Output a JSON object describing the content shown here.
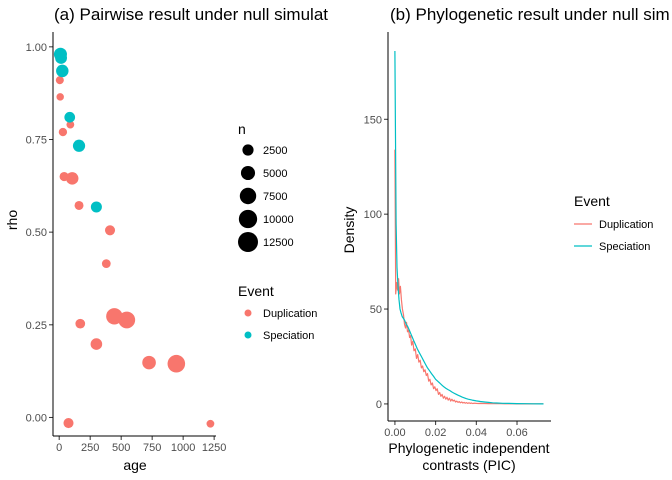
{
  "colors": {
    "duplication": "#F8766D",
    "speciation": "#00BFC4"
  },
  "chart_data": [
    {
      "type": "scatter",
      "title": "(a) Pairwise result under null simulat",
      "xlabel": "age",
      "ylabel": "rho",
      "xlim": [
        -50,
        1265
      ],
      "ylim": [
        -0.05,
        1.04
      ],
      "x_ticks": [
        0,
        250,
        500,
        750,
        1000,
        1250
      ],
      "x_tick_labels": [
        "0",
        "250",
        "500",
        "750",
        "1000",
        "1250"
      ],
      "y_ticks": [
        0,
        0.25,
        0.5,
        0.75,
        1.0
      ],
      "y_tick_labels": [
        "0.00",
        "0.25",
        "0.50",
        "0.75",
        "1.00"
      ],
      "grid": false,
      "size_legend": {
        "title": "n",
        "breaks": [
          2500,
          5000,
          7500,
          10000,
          12500
        ],
        "labels": [
          "2500",
          "5000",
          "7500",
          "10000",
          "12500"
        ]
      },
      "color_legend": {
        "title": "Event",
        "labels": [
          "Duplication",
          "Speciation"
        ]
      },
      "series": [
        {
          "name": "Duplication",
          "points": [
            {
              "x": 5,
              "y": 0.91,
              "n": 800
            },
            {
              "x": 8,
              "y": 0.865,
              "n": 600
            },
            {
              "x": 30,
              "y": 0.77,
              "n": 900
            },
            {
              "x": 90,
              "y": 0.79,
              "n": 700
            },
            {
              "x": 40,
              "y": 0.65,
              "n": 1300
            },
            {
              "x": 105,
              "y": 0.645,
              "n": 3500
            },
            {
              "x": 160,
              "y": 0.572,
              "n": 1200
            },
            {
              "x": 410,
              "y": 0.505,
              "n": 1800
            },
            {
              "x": 380,
              "y": 0.415,
              "n": 1100
            },
            {
              "x": 170,
              "y": 0.253,
              "n": 1600
            },
            {
              "x": 445,
              "y": 0.273,
              "n": 7500
            },
            {
              "x": 545,
              "y": 0.263,
              "n": 8000
            },
            {
              "x": 300,
              "y": 0.198,
              "n": 2800
            },
            {
              "x": 725,
              "y": 0.148,
              "n": 4500
            },
            {
              "x": 945,
              "y": 0.145,
              "n": 9000
            },
            {
              "x": 75,
              "y": -0.015,
              "n": 1800
            },
            {
              "x": 1220,
              "y": -0.017,
              "n": 700
            }
          ]
        },
        {
          "name": "Speciation",
          "points": [
            {
              "x": 10,
              "y": 0.98,
              "n": 4000
            },
            {
              "x": 15,
              "y": 0.97,
              "n": 3000
            },
            {
              "x": 25,
              "y": 0.935,
              "n": 3500
            },
            {
              "x": 85,
              "y": 0.81,
              "n": 2200
            },
            {
              "x": 160,
              "y": 0.733,
              "n": 3300
            },
            {
              "x": 300,
              "y": 0.568,
              "n": 2400
            }
          ]
        }
      ]
    },
    {
      "type": "line",
      "title": "(b) Phylogenetic result under null sim",
      "xlabel": "Phylogenetic independent\ncontrasts (PIC)",
      "ylabel": "Density",
      "xlim": [
        -0.0034,
        0.0767
      ],
      "ylim": [
        -9,
        196
      ],
      "x_ticks": [
        0,
        0.02,
        0.04,
        0.06
      ],
      "x_tick_labels": [
        "0.00",
        "0.02",
        "0.04",
        "0.06"
      ],
      "y_ticks": [
        0,
        50,
        100,
        150
      ],
      "y_tick_labels": [
        "0",
        "50",
        "100",
        "150"
      ],
      "grid": false,
      "color_legend": {
        "title": "Event",
        "labels": [
          "Duplication",
          "Speciation"
        ]
      },
      "series": [
        {
          "name": "Duplication",
          "x": [
            0.0,
            0.0004,
            0.0009,
            0.0013,
            0.0018,
            0.0022,
            0.0027,
            0.0032,
            0.0037,
            0.0042,
            0.0047,
            0.0052,
            0.0057,
            0.0062,
            0.0067,
            0.0072,
            0.0077,
            0.0082,
            0.0088,
            0.0094,
            0.01,
            0.0106,
            0.0112,
            0.0118,
            0.0124,
            0.013,
            0.0136,
            0.0142,
            0.0148,
            0.0154,
            0.016,
            0.0166,
            0.0172,
            0.0178,
            0.0184,
            0.019,
            0.0196,
            0.0202,
            0.0208,
            0.0214,
            0.022,
            0.0226,
            0.0232,
            0.0238,
            0.0244,
            0.025,
            0.0256,
            0.0262,
            0.0268,
            0.0274,
            0.028,
            0.0286,
            0.0292,
            0.0298,
            0.0304,
            0.031,
            0.0316,
            0.0322,
            0.0328,
            0.0334,
            0.034,
            0.0346,
            0.0352,
            0.0358,
            0.0364,
            0.037,
            0.0376,
            0.0382,
            0.039,
            0.04,
            0.041,
            0.042,
            0.043,
            0.044,
            0.046,
            0.048,
            0.05,
            0.052,
            0.054,
            0.056,
            0.058,
            0.06,
            0.062,
            0.064,
            0.066,
            0.068,
            0.07,
            0.072,
            0.073
          ],
          "y": [
            134,
            58,
            64,
            60,
            66,
            58,
            62,
            55,
            50,
            47,
            42,
            40,
            43,
            38,
            39,
            35,
            36,
            31,
            33,
            28,
            29,
            24,
            26,
            22,
            23,
            19,
            20,
            17,
            18,
            15,
            16,
            12,
            13,
            10,
            11,
            8,
            9,
            7,
            8,
            5,
            6,
            4,
            5,
            3,
            4,
            2.5,
            3.5,
            2,
            3,
            1.5,
            2.5,
            1.5,
            2,
            1,
            1.5,
            0.8,
            1.2,
            0.6,
            1.0,
            0.5,
            0.8,
            0.4,
            0.7,
            0.3,
            0.6,
            0.3,
            0.5,
            0.2,
            0.4,
            0.3,
            0.2,
            0.3,
            0.2,
            0.2,
            0.15,
            0.1,
            0.1,
            0.1,
            0.05,
            0.05,
            0.05,
            0.03,
            0.03,
            0.02,
            0.02,
            0.01,
            0.01,
            0.01,
            0.0
          ]
        },
        {
          "name": "Speciation",
          "x": [
            0.0,
            0.0003,
            0.0006,
            0.001,
            0.0015,
            0.002,
            0.0025,
            0.003,
            0.0036,
            0.0042,
            0.0048,
            0.0055,
            0.0062,
            0.007,
            0.0078,
            0.0086,
            0.0094,
            0.0102,
            0.011,
            0.012,
            0.013,
            0.014,
            0.015,
            0.016,
            0.017,
            0.018,
            0.019,
            0.02,
            0.021,
            0.022,
            0.023,
            0.024,
            0.025,
            0.026,
            0.027,
            0.028,
            0.029,
            0.03,
            0.031,
            0.032,
            0.033,
            0.034,
            0.035,
            0.036,
            0.038,
            0.04,
            0.042,
            0.044,
            0.046,
            0.048,
            0.05,
            0.053,
            0.056,
            0.06,
            0.064,
            0.068,
            0.072,
            0.073
          ],
          "y": [
            186,
            140,
            95,
            72,
            62,
            55,
            50,
            48,
            46,
            45,
            44,
            42,
            41,
            39,
            37,
            35,
            33,
            31,
            29,
            27,
            25,
            23,
            21,
            19,
            17.5,
            16,
            14.5,
            13,
            12,
            11,
            10,
            9,
            8.3,
            7.6,
            7,
            6.3,
            5.7,
            5.1,
            4.6,
            4.1,
            3.6,
            3.2,
            2.8,
            2.5,
            2,
            1.6,
            1.3,
            1.0,
            0.8,
            0.6,
            0.5,
            0.35,
            0.25,
            0.15,
            0.1,
            0.06,
            0.03,
            0.02
          ]
        }
      ]
    }
  ]
}
